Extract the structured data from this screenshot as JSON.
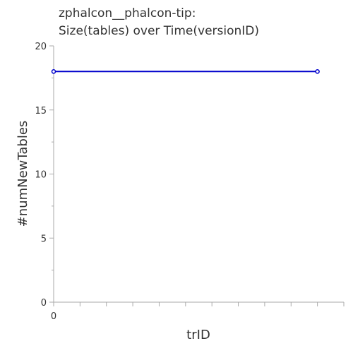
{
  "chart_data": {
    "type": "line",
    "title_lines": [
      "zphalcon__phalcon-tip:",
      "Size(tables) over Time(versionID)"
    ],
    "xlabel": "trID",
    "ylabel": "#numNewTables",
    "xlim": [
      0,
      11
    ],
    "ylim": [
      0,
      20
    ],
    "x_tick_labels": [
      {
        "value": 0,
        "label": "0"
      }
    ],
    "y_tick_labels": [
      {
        "value": 0,
        "label": "0"
      },
      {
        "value": 5,
        "label": "5"
      },
      {
        "value": 10,
        "label": "10"
      },
      {
        "value": 15,
        "label": "15"
      },
      {
        "value": 20,
        "label": "20"
      }
    ],
    "grid": false,
    "series": [
      {
        "color": "#0000cc",
        "x": [
          0,
          10
        ],
        "y": [
          18,
          18
        ]
      }
    ]
  }
}
